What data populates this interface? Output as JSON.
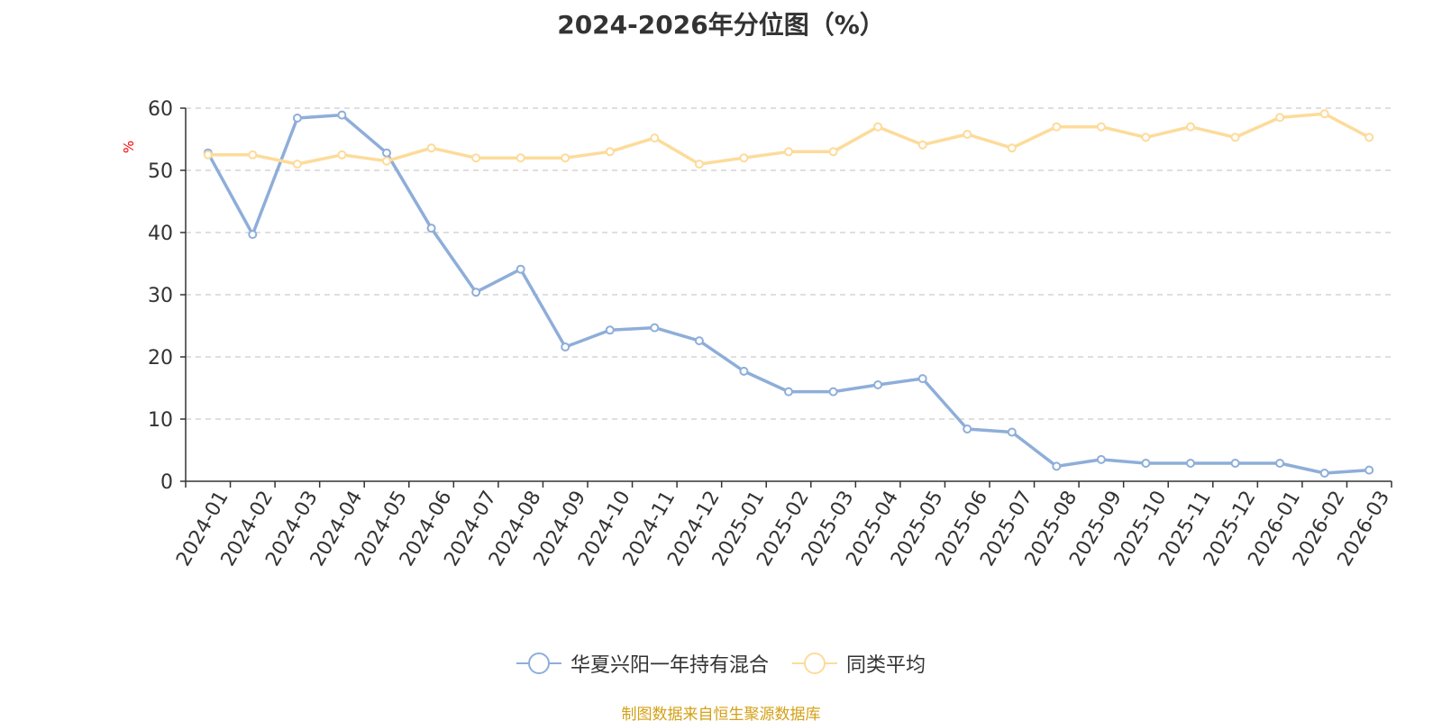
{
  "title": "2024-2026年分位图（%）",
  "footer": "制图数据来自恒生聚源数据库",
  "colors": {
    "series1": "#8eaed9",
    "series2": "#fddb9a",
    "axis": "#333333",
    "grid": "#cccccc",
    "ylabel": "#ff0000"
  },
  "chart_data": {
    "type": "line",
    "ylabel": "%",
    "ylim": [
      0,
      60
    ],
    "yticks": [
      0,
      10,
      20,
      30,
      40,
      50,
      60
    ],
    "grid": "horizontal-dashed",
    "legend_position": "bottom",
    "categories": [
      "2024-01",
      "2024-02",
      "2024-03",
      "2024-04",
      "2024-05",
      "2024-06",
      "2024-07",
      "2024-08",
      "2024-09",
      "2024-10",
      "2024-11",
      "2024-12",
      "2025-01",
      "2025-02",
      "2025-03",
      "2025-04",
      "2025-05",
      "2025-06",
      "2025-07",
      "2025-08",
      "2025-09",
      "2025-10",
      "2025-11",
      "2025-12",
      "2026-01",
      "2026-02",
      "2026-03"
    ],
    "series": [
      {
        "name": "华夏兴阳一年持有混合",
        "values": [
          52.8,
          39.7,
          58.4,
          58.9,
          52.8,
          40.7,
          30.4,
          34.1,
          21.6,
          24.3,
          24.7,
          22.6,
          17.7,
          14.4,
          14.4,
          15.5,
          16.5,
          8.4,
          7.9,
          2.4,
          3.5,
          2.9,
          2.9,
          2.9,
          2.9,
          1.3,
          1.8
        ]
      },
      {
        "name": "同类平均",
        "values": [
          52.5,
          52.5,
          51.0,
          52.5,
          51.5,
          53.6,
          52.0,
          52.0,
          52.0,
          53.0,
          55.2,
          51.0,
          52.0,
          53.0,
          53.0,
          57.0,
          54.1,
          55.8,
          53.6,
          57.0,
          57.0,
          55.3,
          57.0,
          55.3,
          58.5,
          59.1,
          55.3
        ]
      }
    ]
  }
}
